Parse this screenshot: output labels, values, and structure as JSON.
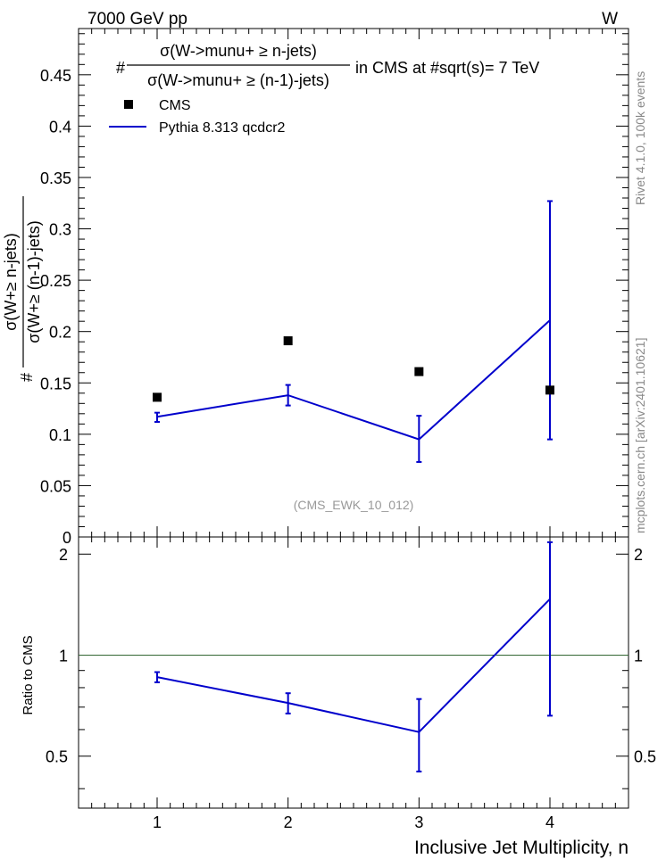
{
  "header": {
    "energy": "7000 GeV pp",
    "process": "W"
  },
  "side": {
    "rivet": "Rivet 4.1.0,  100k events",
    "mcplots": "mcplots.cern.ch [arXiv:2401.10621]"
  },
  "chart_data": {
    "type": "line",
    "title": {
      "prefix": "#",
      "numerator": "σ(W->munu+ ≥ n-jets)",
      "denominator": "σ(W->munu+ ≥ (n-1)-jets)",
      "suffix": "in CMS at #sqrt(s)= 7 TeV"
    },
    "ylabel": {
      "prefix": "#",
      "numerator": "σ(W+≥ n-jets)",
      "denominator": "σ(W+≥ (n-1)-jets)"
    },
    "xlabel": "Inclusive Jet Multiplicity, n",
    "ratio_ylabel": "Ratio to CMS",
    "analysis": "(CMS_EWK_10_012)",
    "xlim": [
      0.4,
      4.6
    ],
    "ylim": [
      0,
      0.495
    ],
    "ratio_ylim": [
      0.35,
      2.25
    ],
    "x": [
      1,
      2,
      3,
      4
    ],
    "xticks": [
      1,
      2,
      3,
      4
    ],
    "xtick_labels": [
      "1",
      "2",
      "3",
      "4"
    ],
    "yticks": [
      0,
      0.05,
      0.1,
      0.15,
      0.2,
      0.25,
      0.3,
      0.35,
      0.4,
      0.45
    ],
    "ytick_labels": [
      "0",
      "0.05",
      "0.1",
      "0.15",
      "0.2",
      "0.25",
      "0.3",
      "0.35",
      "0.4",
      "0.45"
    ],
    "ratio_yticks": [
      0.5,
      1,
      2
    ],
    "ratio_ytick_labels": [
      "0.5",
      "1",
      "2"
    ],
    "legend": [
      "CMS",
      "Pythia 8.313 qcdcr2"
    ],
    "series": [
      {
        "name": "CMS",
        "style": "marker",
        "color": "#000000",
        "values": [
          0.136,
          0.191,
          0.161,
          0.143
        ]
      },
      {
        "name": "Pythia 8.313 qcdcr2",
        "style": "line",
        "color": "#0000cc",
        "values": [
          0.117,
          0.138,
          0.095,
          0.211
        ],
        "err_low": [
          0.112,
          0.128,
          0.073,
          0.095
        ],
        "err_high": [
          0.121,
          0.148,
          0.118,
          0.327
        ]
      }
    ],
    "ratio": {
      "reference_line": 1,
      "reference_color": "#336633",
      "values": [
        0.86,
        0.72,
        0.59,
        1.47
      ],
      "err_low": [
        0.83,
        0.67,
        0.45,
        0.66
      ],
      "err_high": [
        0.89,
        0.77,
        0.74,
        2.17
      ]
    }
  }
}
